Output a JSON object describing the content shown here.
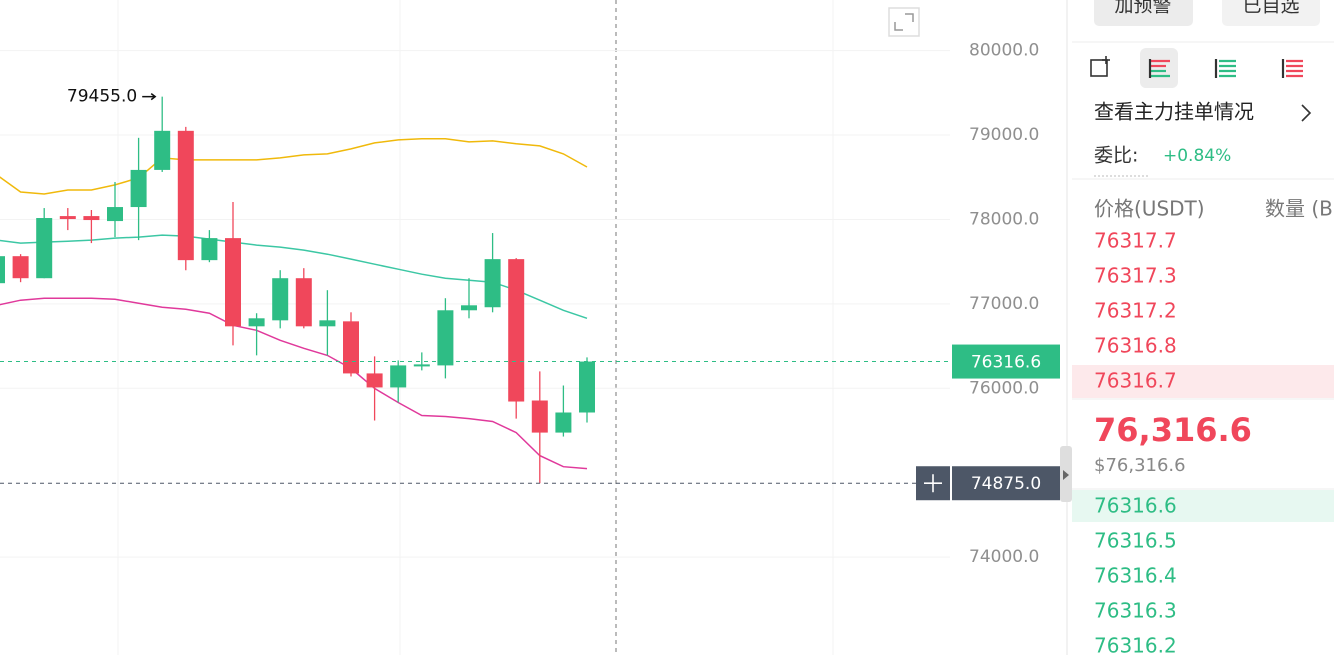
{
  "chart_data": {
    "type": "candlestick",
    "categories": [
      null,
      null,
      null,
      null,
      null,
      null,
      null,
      null,
      null,
      null,
      null,
      null,
      null,
      null,
      null,
      null,
      null,
      null,
      null,
      null,
      null,
      null,
      null,
      null,
      null,
      null
    ],
    "open": [
      77245,
      77565,
      77304,
      78040,
      78040,
      77981,
      78147,
      78587,
      79050,
      77518,
      77779,
      76734,
      76805,
      77304,
      76734,
      76793,
      76176,
      76010,
      76259,
      76271,
      76924,
      76960,
      77530,
      75855,
      75475,
      75713
    ],
    "high": [
      77613,
      77589,
      78135,
      78135,
      78112,
      78444,
      78967,
      79455,
      79097,
      77874,
      78207,
      76889,
      77399,
      77423,
      77162,
      76900,
      76378,
      76330,
      76425,
      77067,
      77304,
      77839,
      77542,
      76200,
      76033,
      76366
    ],
    "low": [
      77221,
      77257,
      77304,
      77874,
      77720,
      77791,
      77755,
      78563,
      77399,
      77494,
      76508,
      76390,
      76710,
      76710,
      76390,
      76140,
      75618,
      75832,
      76212,
      76117,
      76829,
      76900,
      75641,
      74875,
      75428,
      75594
    ],
    "close": [
      77565,
      77304,
      78017,
      78005,
      77993,
      78147,
      78587,
      79050,
      77518,
      77779,
      76734,
      76829,
      77304,
      76734,
      76805,
      76176,
      76010,
      76271,
      76283,
      76924,
      76983,
      77530,
      75843,
      75475,
      75713,
      76316.6
    ],
    "up_color": "#2ebd85",
    "down_color": "#f0475b",
    "overlays": [
      {
        "color": "#f0b90b",
        "values": [
          78527,
          78325,
          78302,
          78349,
          78349,
          78409,
          78492,
          78729,
          78706,
          78706,
          78706,
          78706,
          78729,
          78765,
          78777,
          78836,
          78907,
          78943,
          78955,
          78955,
          78919,
          78931,
          78896,
          78872,
          78777,
          78622
        ]
      },
      {
        "color": "#3cc7a4",
        "values": [
          77755,
          77720,
          77732,
          77743,
          77755,
          77779,
          77791,
          77815,
          77803,
          77767,
          77732,
          77696,
          77672,
          77637,
          77589,
          77530,
          77470,
          77411,
          77352,
          77304,
          77280,
          77257,
          77162,
          77043,
          76924,
          76829
        ]
      },
      {
        "color": "#e0399b",
        "values": [
          76983,
          77043,
          77067,
          77067,
          77067,
          77055,
          77007,
          76960,
          76936,
          76889,
          76746,
          76687,
          76568,
          76473,
          76390,
          76235,
          75998,
          75832,
          75677,
          75665,
          75641,
          75606,
          75475,
          75202,
          75071,
          75048
        ]
      }
    ],
    "ylim": [
      72840,
      80600
    ],
    "yticks": [
      {
        "value": 74000,
        "label": "74000.0"
      },
      {
        "value": 76000,
        "label": "76000.0"
      },
      {
        "value": 77000,
        "label": "77000.0"
      },
      {
        "value": 78000,
        "label": "78000.0"
      },
      {
        "value": 79000,
        "label": "79000.0"
      },
      {
        "value": 80000,
        "label": "80000.0"
      }
    ],
    "grid": true,
    "annotations": [
      {
        "value": 79455,
        "label": "79455.0"
      }
    ],
    "price_lines": [
      {
        "value": 76316.6,
        "label": "76316.6",
        "color": "#2ebd85"
      },
      {
        "value": 74875,
        "label": "74875.0",
        "color": "#4d5767"
      }
    ]
  },
  "panel": {
    "buttons": [
      "加预警",
      "已自选"
    ],
    "link": "查看主力挂单情况",
    "ratio_label": "委比:",
    "ratio_value": "+0.84%",
    "headers": [
      "价格(USDT)",
      "数量 (B"
    ],
    "asks": [
      "76317.7",
      "76317.3",
      "76317.2",
      "76316.8",
      "76316.7"
    ],
    "last_price": "76,316.6",
    "last_price_usd": "$76,316.6",
    "bids": [
      "76316.6",
      "76316.5",
      "76316.4",
      "76316.3",
      "76316.2"
    ]
  }
}
